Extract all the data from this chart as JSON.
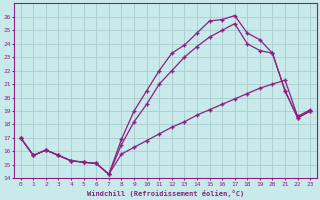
{
  "xlabel": "Windchill (Refroidissement éolien,°C)",
  "bg_color": "#c8eaea",
  "line_color": "#8b2080",
  "grid_color": "#a8cccc",
  "xlim": [
    -0.5,
    23.5
  ],
  "ylim": [
    14,
    27
  ],
  "yticks": [
    14,
    15,
    16,
    17,
    18,
    19,
    20,
    21,
    22,
    23,
    24,
    25,
    26
  ],
  "xticks": [
    0,
    1,
    2,
    3,
    4,
    5,
    6,
    7,
    8,
    9,
    10,
    11,
    12,
    13,
    14,
    15,
    16,
    17,
    18,
    19,
    20,
    21,
    22,
    23
  ],
  "series1_x": [
    0,
    1,
    2,
    3,
    4,
    5,
    6,
    7,
    8,
    9,
    10,
    11,
    12,
    13,
    14,
    15,
    16,
    17,
    18,
    19,
    20,
    21,
    22,
    23
  ],
  "series1_y": [
    17.0,
    15.7,
    16.1,
    15.7,
    15.3,
    15.2,
    15.1,
    14.3,
    16.9,
    19.0,
    20.5,
    22.0,
    23.3,
    23.9,
    24.8,
    25.7,
    25.8,
    26.1,
    24.8,
    24.3,
    23.3,
    20.5,
    18.5,
    19.0
  ],
  "series2_x": [
    0,
    1,
    2,
    3,
    4,
    5,
    6,
    7,
    8,
    9,
    10,
    11,
    12,
    13,
    14,
    15,
    16,
    17,
    18,
    19,
    20,
    21,
    22,
    23
  ],
  "series2_y": [
    17.0,
    15.7,
    16.1,
    15.7,
    15.3,
    15.2,
    15.1,
    14.3,
    16.5,
    18.2,
    19.5,
    21.0,
    22.0,
    23.0,
    23.8,
    24.5,
    25.0,
    25.5,
    24.0,
    23.5,
    23.3,
    20.5,
    18.5,
    19.0
  ],
  "series3_x": [
    0,
    1,
    2,
    3,
    4,
    5,
    6,
    7,
    8,
    9,
    10,
    11,
    12,
    13,
    14,
    15,
    16,
    17,
    18,
    19,
    20,
    21,
    22,
    23
  ],
  "series3_y": [
    17.0,
    15.7,
    16.1,
    15.7,
    15.3,
    15.2,
    15.1,
    14.3,
    15.8,
    16.3,
    16.8,
    17.3,
    17.8,
    18.2,
    18.7,
    19.1,
    19.5,
    19.9,
    20.3,
    20.7,
    21.0,
    21.3,
    18.6,
    19.1
  ],
  "marker": "+",
  "markersize": 3,
  "linewidth": 0.9
}
